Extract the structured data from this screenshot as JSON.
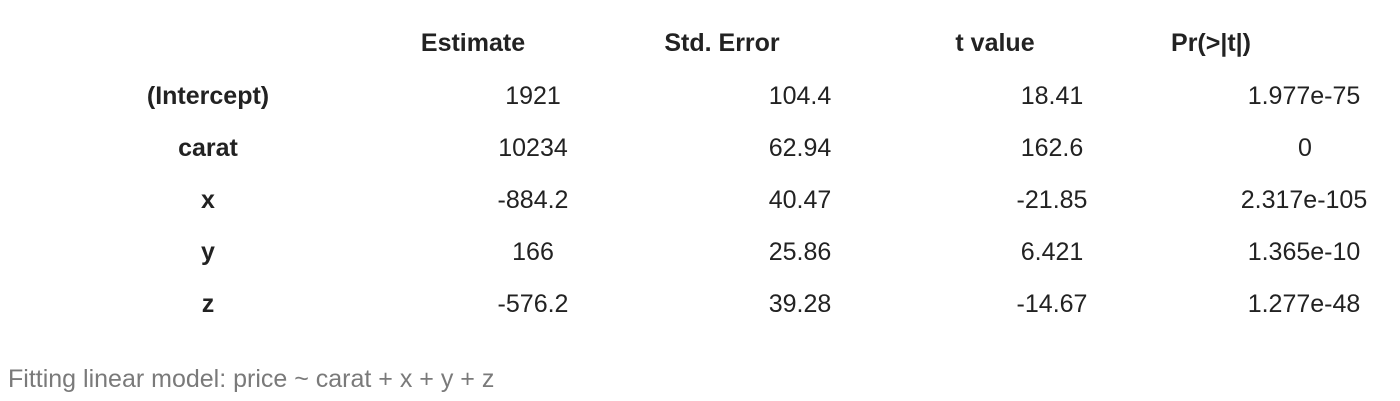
{
  "table": {
    "headers": [
      "",
      "Estimate",
      "Std. Error",
      "t value",
      "Pr(>|t|)"
    ],
    "rows": [
      [
        "(Intercept)",
        "1921",
        "104.4",
        "18.41",
        "1.977e-75"
      ],
      [
        "carat",
        "10234",
        "62.94",
        "162.6",
        "0"
      ],
      [
        "x",
        "-884.2",
        "40.47",
        "-21.85",
        "2.317e-105"
      ],
      [
        "y",
        "166",
        "25.86",
        "6.421",
        "1.365e-10"
      ],
      [
        "z",
        "-576.2",
        "39.28",
        "-14.67",
        "1.277e-48"
      ]
    ]
  },
  "caption": "Fitting linear model: price ~ carat + x + y + z"
}
